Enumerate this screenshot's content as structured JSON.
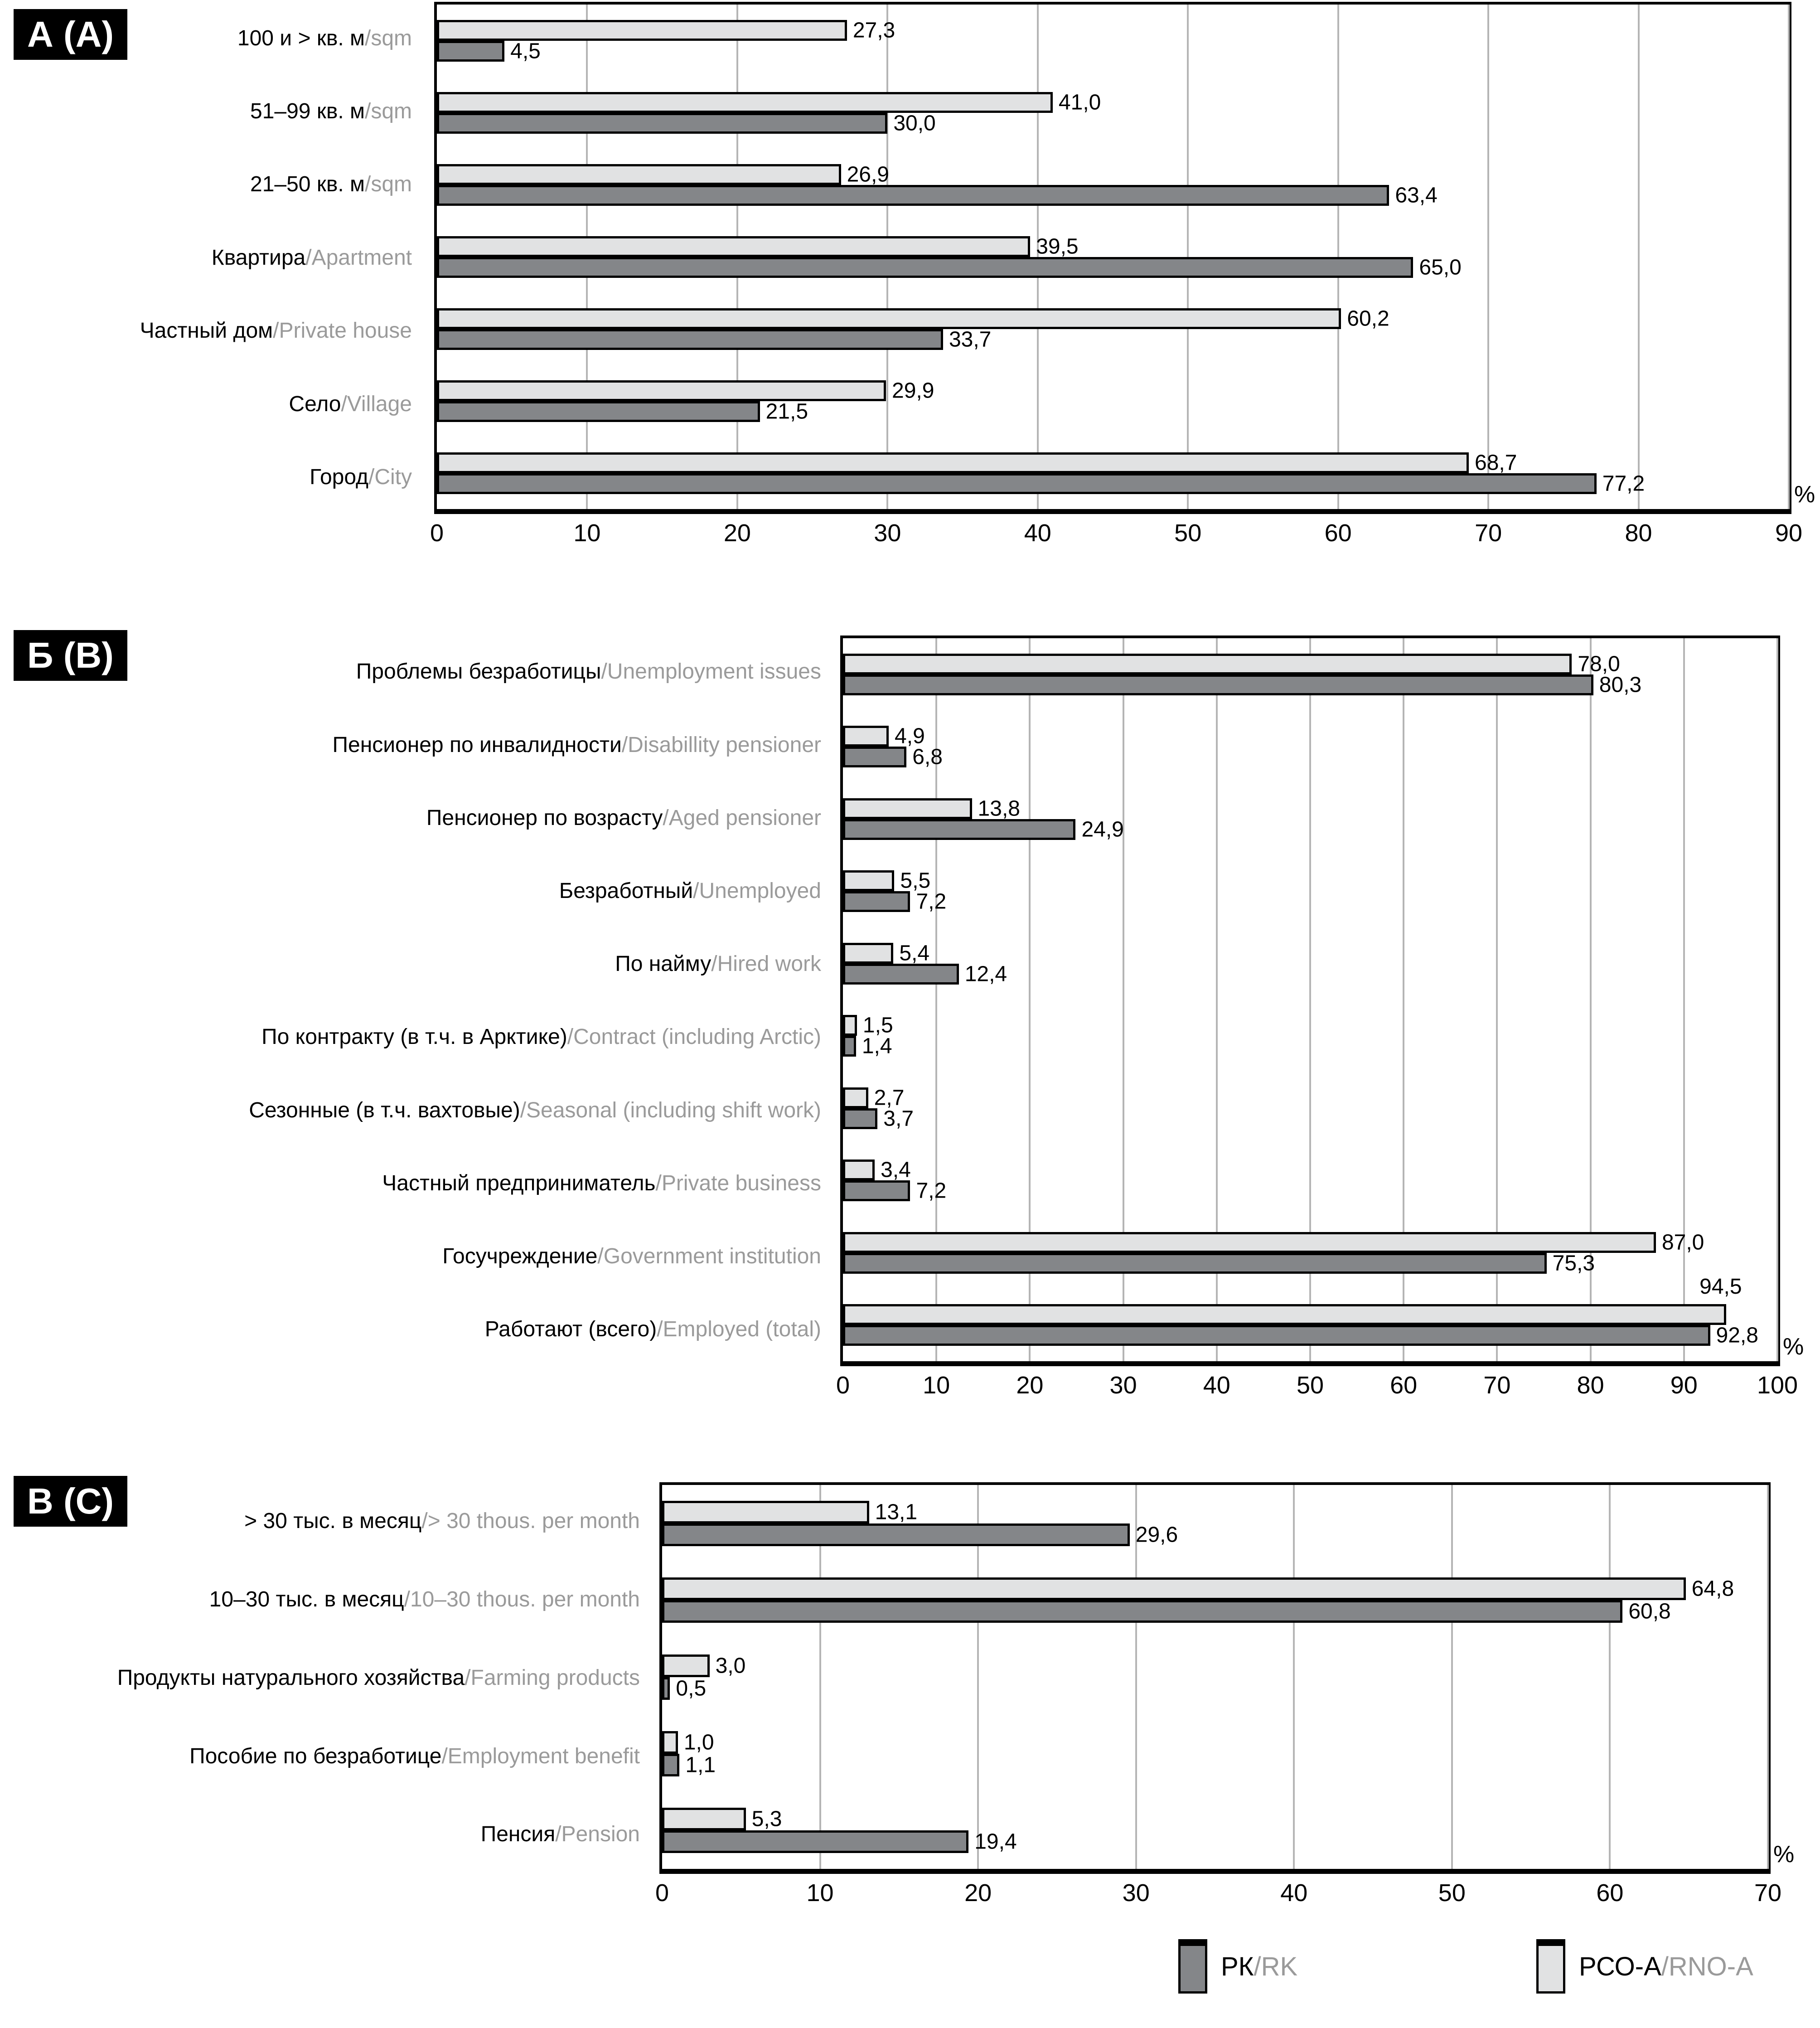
{
  "separator": "/",
  "unit_label": "%",
  "colors": {
    "rk_dark": "#848689",
    "rno_a_light": "#e1e2e3",
    "bar_border": "#000000",
    "gridline": "#b5b5b5",
    "secondary_text": "#9a9a9a"
  },
  "legend": [
    {
      "label_ru": "РК",
      "label_en": "RK",
      "color": "#848689"
    },
    {
      "label_ru": "РСО-А",
      "label_en": "RNO-A",
      "color": "#e1e2e3"
    }
  ],
  "chart_data": [
    {
      "type": "bar",
      "orientation": "horizontal",
      "panel_label": "А (А)",
      "grid": true,
      "legend_position": "bottom",
      "axis": {
        "min": 0,
        "max": 90,
        "step": 10,
        "unit_label": "%",
        "tick_labels": [
          "0",
          "10",
          "20",
          "30",
          "40",
          "50",
          "60",
          "70",
          "80",
          "90"
        ]
      },
      "categories": [
        {
          "ru": "100 и > кв. м",
          "en": "sqm"
        },
        {
          "ru": "51–99 кв. м",
          "en": "sqm"
        },
        {
          "ru": "21–50 кв. м",
          "en": "sqm"
        },
        {
          "ru": "Квартира",
          "en": "Apartment"
        },
        {
          "ru": "Частный дом",
          "en": "Private house"
        },
        {
          "ru": "Село",
          "en": "Village"
        },
        {
          "ru": "Город",
          "en": "City"
        }
      ],
      "series": [
        {
          "name_ru": "РСО-А",
          "name_en": "RNO-A",
          "color": "#e1e2e3",
          "values": [
            27.3,
            41.0,
            26.9,
            39.5,
            60.2,
            29.9,
            68.7
          ],
          "label_above_indices": []
        },
        {
          "name_ru": "РК",
          "name_en": "RK",
          "color": "#848689",
          "values": [
            4.5,
            30.0,
            63.4,
            65.0,
            33.7,
            21.5,
            77.2
          ],
          "label_above_indices": []
        }
      ]
    },
    {
      "type": "bar",
      "orientation": "horizontal",
      "panel_label": "Б (В)",
      "grid": true,
      "legend_position": "bottom",
      "axis": {
        "min": 0,
        "max": 100,
        "step": 10,
        "unit_label": "%",
        "tick_labels": [
          "0",
          "10",
          "20",
          "30",
          "40",
          "50",
          "60",
          "70",
          "80",
          "90",
          "100"
        ]
      },
      "categories": [
        {
          "ru": "Проблемы безработицы",
          "en": "Unemployment issues"
        },
        {
          "ru": "Пенсионер по инвалидности",
          "en": "Disabillity pensioner"
        },
        {
          "ru": "Пенсионер по возрасту",
          "en": "Aged pensioner"
        },
        {
          "ru": "Безработный",
          "en": "Unemployed"
        },
        {
          "ru": "По найму",
          "en": "Hired work"
        },
        {
          "ru": "По контракту (в т.ч. в Арктике)",
          "en": "Contract (including Arctic)"
        },
        {
          "ru": "Сезонные (в т.ч. вахтовые)",
          "en": "Seasonal (including shift work)"
        },
        {
          "ru": "Частный предприниматель",
          "en": "Private business"
        },
        {
          "ru": "Госучреждение",
          "en": "Government institution"
        },
        {
          "ru": "Работают (всего)",
          "en": "Employed (total)"
        }
      ],
      "series": [
        {
          "name_ru": "РСО-А",
          "name_en": "RNO-A",
          "color": "#e1e2e3",
          "values": [
            78.0,
            4.9,
            13.8,
            5.5,
            5.4,
            1.5,
            2.7,
            3.4,
            87.0,
            94.5
          ],
          "label_above_indices": [
            9
          ]
        },
        {
          "name_ru": "РК",
          "name_en": "RK",
          "color": "#848689",
          "values": [
            80.3,
            6.8,
            24.9,
            7.2,
            12.4,
            1.4,
            3.7,
            7.2,
            75.3,
            92.8
          ],
          "label_above_indices": []
        }
      ]
    },
    {
      "type": "bar",
      "orientation": "horizontal",
      "panel_label": "В (С)",
      "grid": true,
      "legend_position": "bottom",
      "axis": {
        "min": 0,
        "max": 70,
        "step": 10,
        "unit_label": "%",
        "tick_labels": [
          "0",
          "10",
          "20",
          "30",
          "40",
          "50",
          "60",
          "70"
        ]
      },
      "categories": [
        {
          "ru": "> 30 тыс. в месяц",
          "en": "> 30 thous. per month"
        },
        {
          "ru": "10–30 тыс. в месяц",
          "en": "10–30 thous. per month"
        },
        {
          "ru": "Продукты натурального хозяйства",
          "en": "Farming products"
        },
        {
          "ru": "Пособие по безработице",
          "en": "Employment benefit"
        },
        {
          "ru": "Пенсия",
          "en": "Pension"
        }
      ],
      "series": [
        {
          "name_ru": "РСО-А",
          "name_en": "RNO-A",
          "color": "#e1e2e3",
          "values": [
            13.1,
            64.8,
            3.0,
            1.0,
            5.3
          ],
          "label_above_indices": []
        },
        {
          "name_ru": "РК",
          "name_en": "RK",
          "color": "#848689",
          "values": [
            29.6,
            60.8,
            0.5,
            1.1,
            19.4
          ],
          "label_above_indices": []
        }
      ]
    }
  ]
}
